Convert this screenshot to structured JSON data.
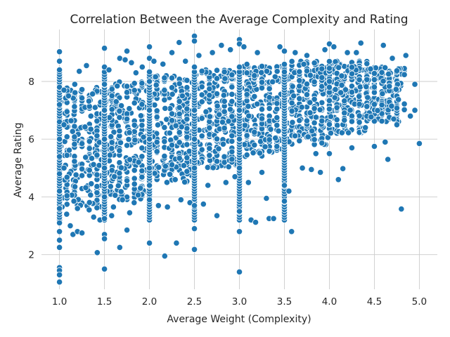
{
  "chart_data": {
    "type": "scatter",
    "title": "Correlation Between the Average Complexity and Rating",
    "xlabel": "Average Weight (Complexity)",
    "ylabel": "Average Rating",
    "xlim": [
      0.8,
      5.2
    ],
    "ylim": [
      0.8,
      9.8
    ],
    "xticks": [
      1.0,
      1.5,
      2.0,
      2.5,
      3.0,
      3.5,
      4.0,
      4.5,
      5.0
    ],
    "xtick_labels": [
      "1.0",
      "1.5",
      "2.0",
      "2.5",
      "3.0",
      "3.5",
      "4.0",
      "4.5",
      "5.0"
    ],
    "yticks": [
      2,
      4,
      6,
      8
    ],
    "ytick_labels": [
      "2",
      "4",
      "6",
      "8"
    ],
    "grid": true,
    "legend": "none",
    "color": "#1f77b4",
    "points": [
      [
        1.0,
        9.03
      ],
      [
        1.0,
        8.7
      ],
      [
        1.0,
        8.4
      ],
      [
        1.0,
        7.8
      ],
      [
        1.0,
        7.2
      ],
      [
        1.0,
        6.6
      ],
      [
        1.0,
        6.0
      ],
      [
        1.0,
        5.4
      ],
      [
        1.0,
        4.8
      ],
      [
        1.0,
        4.2
      ],
      [
        1.0,
        3.6
      ],
      [
        1.0,
        3.1
      ],
      [
        1.0,
        2.8
      ],
      [
        1.0,
        2.5
      ],
      [
        1.0,
        2.25
      ],
      [
        1.0,
        1.55
      ],
      [
        1.0,
        1.45
      ],
      [
        1.0,
        1.3
      ],
      [
        1.0,
        1.05
      ],
      [
        1.05,
        7.7
      ],
      [
        1.05,
        6.5
      ],
      [
        1.05,
        5.0
      ],
      [
        1.08,
        3.4
      ],
      [
        1.1,
        7.5
      ],
      [
        1.12,
        3.0
      ],
      [
        1.15,
        2.7
      ],
      [
        1.17,
        7.9
      ],
      [
        1.2,
        2.8
      ],
      [
        1.2,
        3.6
      ],
      [
        1.22,
        8.35
      ],
      [
        1.25,
        2.75
      ],
      [
        1.3,
        8.55
      ],
      [
        1.33,
        3.55
      ],
      [
        1.38,
        3.3
      ],
      [
        1.42,
        2.07
      ],
      [
        1.45,
        3.2
      ],
      [
        1.5,
        9.15
      ],
      [
        1.5,
        8.5
      ],
      [
        1.5,
        7.9
      ],
      [
        1.5,
        7.0
      ],
      [
        1.5,
        6.0
      ],
      [
        1.5,
        5.0
      ],
      [
        1.5,
        4.0
      ],
      [
        1.5,
        3.25
      ],
      [
        1.5,
        2.7
      ],
      [
        1.5,
        2.55
      ],
      [
        1.5,
        1.5
      ],
      [
        1.55,
        8.4
      ],
      [
        1.58,
        3.35
      ],
      [
        1.6,
        3.65
      ],
      [
        1.63,
        7.3
      ],
      [
        1.67,
        2.25
      ],
      [
        1.67,
        8.8
      ],
      [
        1.7,
        3.9
      ],
      [
        1.73,
        8.75
      ],
      [
        1.75,
        2.85
      ],
      [
        1.75,
        9.05
      ],
      [
        1.78,
        3.45
      ],
      [
        1.8,
        8.65
      ],
      [
        1.83,
        3.8
      ],
      [
        1.85,
        8.3
      ],
      [
        1.88,
        5.2
      ],
      [
        1.9,
        4.3
      ],
      [
        1.92,
        8.5
      ],
      [
        2.0,
        9.2
      ],
      [
        2.0,
        8.8
      ],
      [
        2.0,
        8.0
      ],
      [
        2.0,
        7.0
      ],
      [
        2.0,
        6.0
      ],
      [
        2.0,
        5.0
      ],
      [
        2.0,
        4.4
      ],
      [
        2.0,
        3.9
      ],
      [
        2.0,
        2.4
      ],
      [
        2.05,
        8.7
      ],
      [
        2.1,
        3.7
      ],
      [
        2.15,
        8.6
      ],
      [
        2.17,
        1.95
      ],
      [
        2.2,
        3.65
      ],
      [
        2.25,
        9.0
      ],
      [
        2.3,
        2.4
      ],
      [
        2.33,
        9.35
      ],
      [
        2.35,
        3.9
      ],
      [
        2.4,
        8.7
      ],
      [
        2.45,
        3.8
      ],
      [
        2.5,
        9.57
      ],
      [
        2.5,
        9.4
      ],
      [
        2.5,
        8.5
      ],
      [
        2.5,
        7.0
      ],
      [
        2.5,
        6.0
      ],
      [
        2.5,
        5.0
      ],
      [
        2.5,
        3.7
      ],
      [
        2.5,
        2.9
      ],
      [
        2.5,
        2.18
      ],
      [
        2.55,
        8.9
      ],
      [
        2.6,
        3.75
      ],
      [
        2.65,
        4.4
      ],
      [
        2.7,
        9.0
      ],
      [
        2.75,
        3.35
      ],
      [
        2.8,
        9.25
      ],
      [
        2.85,
        4.5
      ],
      [
        2.9,
        9.1
      ],
      [
        2.95,
        4.7
      ],
      [
        3.0,
        9.45
      ],
      [
        3.0,
        9.3
      ],
      [
        3.0,
        8.5
      ],
      [
        3.0,
        7.0
      ],
      [
        3.0,
        6.0
      ],
      [
        3.0,
        5.0
      ],
      [
        3.0,
        3.5
      ],
      [
        3.0,
        2.8
      ],
      [
        3.0,
        1.4
      ],
      [
        3.05,
        9.2
      ],
      [
        3.1,
        4.5
      ],
      [
        3.13,
        3.2
      ],
      [
        3.18,
        3.12
      ],
      [
        3.2,
        9.0
      ],
      [
        3.25,
        4.85
      ],
      [
        3.3,
        3.95
      ],
      [
        3.33,
        3.25
      ],
      [
        3.38,
        3.25
      ],
      [
        3.45,
        9.2
      ],
      [
        3.5,
        9.05
      ],
      [
        3.5,
        4.4
      ],
      [
        3.5,
        3.85
      ],
      [
        3.55,
        4.2
      ],
      [
        3.58,
        2.8
      ],
      [
        3.62,
        9.0
      ],
      [
        3.7,
        5.0
      ],
      [
        3.75,
        8.9
      ],
      [
        3.8,
        4.95
      ],
      [
        3.85,
        5.5
      ],
      [
        3.9,
        4.85
      ],
      [
        3.95,
        9.1
      ],
      [
        4.0,
        9.3
      ],
      [
        4.0,
        5.5
      ],
      [
        4.05,
        9.2
      ],
      [
        4.1,
        4.6
      ],
      [
        4.15,
        4.98
      ],
      [
        4.2,
        9.0
      ],
      [
        4.25,
        5.7
      ],
      [
        4.3,
        9.0
      ],
      [
        4.35,
        9.33
      ],
      [
        4.4,
        6.4
      ],
      [
        4.5,
        5.75
      ],
      [
        4.6,
        9.25
      ],
      [
        4.62,
        5.9
      ],
      [
        4.65,
        5.3
      ],
      [
        4.7,
        8.8
      ],
      [
        4.75,
        6.5
      ],
      [
        4.8,
        3.58
      ],
      [
        4.85,
        8.9
      ],
      [
        4.9,
        6.8
      ],
      [
        4.95,
        7.0
      ],
      [
        4.95,
        7.9
      ],
      [
        5.0,
        5.85
      ]
    ],
    "dense_region": [
      {
        "x_from": 1.0,
        "x_to": 1.5,
        "y_low": 3.6,
        "y_high": 7.8
      },
      {
        "x_from": 1.5,
        "x_to": 2.0,
        "y_low": 3.9,
        "y_high": 8.0
      },
      {
        "x_from": 2.0,
        "x_to": 2.5,
        "y_low": 4.5,
        "y_high": 8.2
      },
      {
        "x_from": 2.5,
        "x_to": 3.0,
        "y_low": 5.0,
        "y_high": 8.4
      },
      {
        "x_from": 3.0,
        "x_to": 3.5,
        "y_low": 5.4,
        "y_high": 8.6
      },
      {
        "x_from": 3.5,
        "x_to": 4.0,
        "y_low": 5.8,
        "y_high": 8.7
      },
      {
        "x_from": 4.0,
        "x_to": 4.4,
        "y_low": 6.2,
        "y_high": 8.7
      },
      {
        "x_from": 4.4,
        "x_to": 4.8,
        "y_low": 6.6,
        "y_high": 8.5
      }
    ]
  }
}
